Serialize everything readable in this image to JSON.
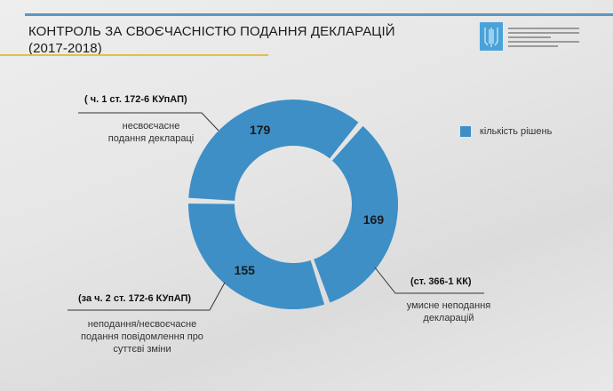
{
  "header": {
    "title_line1": "КОНТРОЛЬ ЗА СВОЄЧАСНІСТЮ ПОДАННЯ ДЕКЛАРАЦІЙ",
    "title_line2": "(2017-2018)",
    "logo_text": "НАЦІОНАЛЬНЕ АГЕНТСТВО З ПИТАНЬ ЗАПОБІГАННЯ КОРУПЦІЇ / NATIONAL AGENCY ON CORRUPTION PREVENTION"
  },
  "colors": {
    "slice": "#3d8fc6",
    "accent_top": "#5b97c2",
    "accent_gold": "#e2c04a"
  },
  "chart_data": {
    "type": "pie",
    "variant": "donut",
    "categories": [
      "несвоєчасне подання деклараці",
      "умисне неподання декларацій",
      "неподання/несвоєчасне подання повідомлення про суттєві зміни"
    ],
    "annotations": [
      "( ч. 1 ст.  172-6 КУпАП)",
      "(ст. 366-1 КК)",
      "(за ч. 2 ст.  172-6 КУпАП)"
    ],
    "values": [
      179,
      169,
      155
    ],
    "value_labels": [
      "179",
      "169",
      "155"
    ],
    "legend": {
      "label": "кількість рішень",
      "position": "right"
    }
  },
  "labels": {
    "s0_line1": "несвоєчасне",
    "s0_line2": "подання деклараці",
    "s1_line1": "умисне неподання",
    "s1_line2": "декларацій",
    "s2_line1": "неподання/несвоєчасне",
    "s2_line2": "подання повідомлення про",
    "s2_line3": "суттєві зміни"
  }
}
